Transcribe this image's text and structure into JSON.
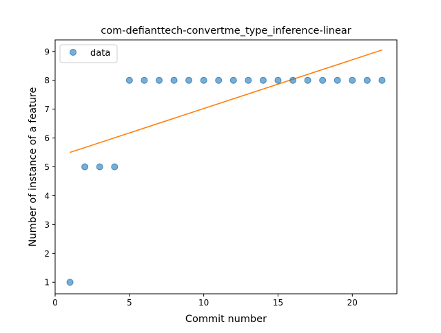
{
  "chart_data": {
    "type": "scatter",
    "title": "com-defianttech-convertme_type_inference-linear",
    "xlabel": "Commit number",
    "ylabel": "Number of instance of a feature",
    "xlim": [
      0,
      23
    ],
    "ylim": [
      0.6,
      9.4
    ],
    "xticks": [
      0,
      5,
      10,
      15,
      20
    ],
    "yticks": [
      1,
      2,
      3,
      4,
      5,
      6,
      7,
      8,
      9
    ],
    "grid": false,
    "legend_position": "top-left",
    "series": [
      {
        "name": "data",
        "kind": "points",
        "color": "#1f77b4",
        "x": [
          1,
          2,
          3,
          4,
          5,
          6,
          7,
          8,
          9,
          10,
          11,
          12,
          13,
          14,
          15,
          16,
          17,
          18,
          19,
          20,
          21,
          22
        ],
        "y": [
          1,
          5,
          5,
          5,
          8,
          8,
          8,
          8,
          8,
          8,
          8,
          8,
          8,
          8,
          8,
          8,
          8,
          8,
          8,
          8,
          8,
          8
        ]
      },
      {
        "kind": "line",
        "color": "#ff7f0e",
        "x": [
          1,
          22
        ],
        "y": [
          5.5,
          9.05
        ]
      }
    ]
  }
}
